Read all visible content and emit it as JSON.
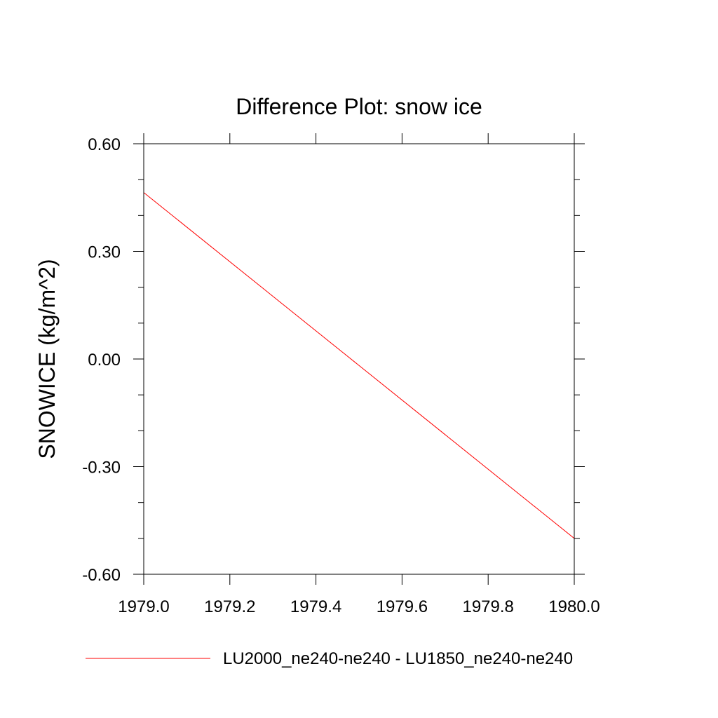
{
  "chart_data": {
    "type": "line",
    "title": "Difference Plot: snow ice",
    "xlabel": "",
    "ylabel": "SNOWICE  (kg/m^2)",
    "xlim": [
      1979.0,
      1980.0
    ],
    "ylim": [
      -0.6,
      0.6
    ],
    "x_ticks": [
      1979.0,
      1979.2,
      1979.4,
      1979.6,
      1979.8,
      1980.0
    ],
    "x_tick_labels": [
      "1979.0",
      "1979.2",
      "1979.4",
      "1979.6",
      "1979.8",
      "1980.0"
    ],
    "y_ticks": [
      0.6,
      0.3,
      0.0,
      -0.3,
      -0.6
    ],
    "y_tick_labels": [
      "0.60",
      "0.30",
      "0.00",
      "-0.30",
      "-0.60"
    ],
    "y_minor_step": 0.1,
    "grid": false,
    "legend_position": "bottom",
    "series": [
      {
        "name": "LU2000_ne240-ne240 - LU1850_ne240-ne240",
        "color": "#ff0000",
        "x": [
          1979.0,
          1980.0
        ],
        "y": [
          0.464,
          -0.5
        ]
      }
    ]
  }
}
